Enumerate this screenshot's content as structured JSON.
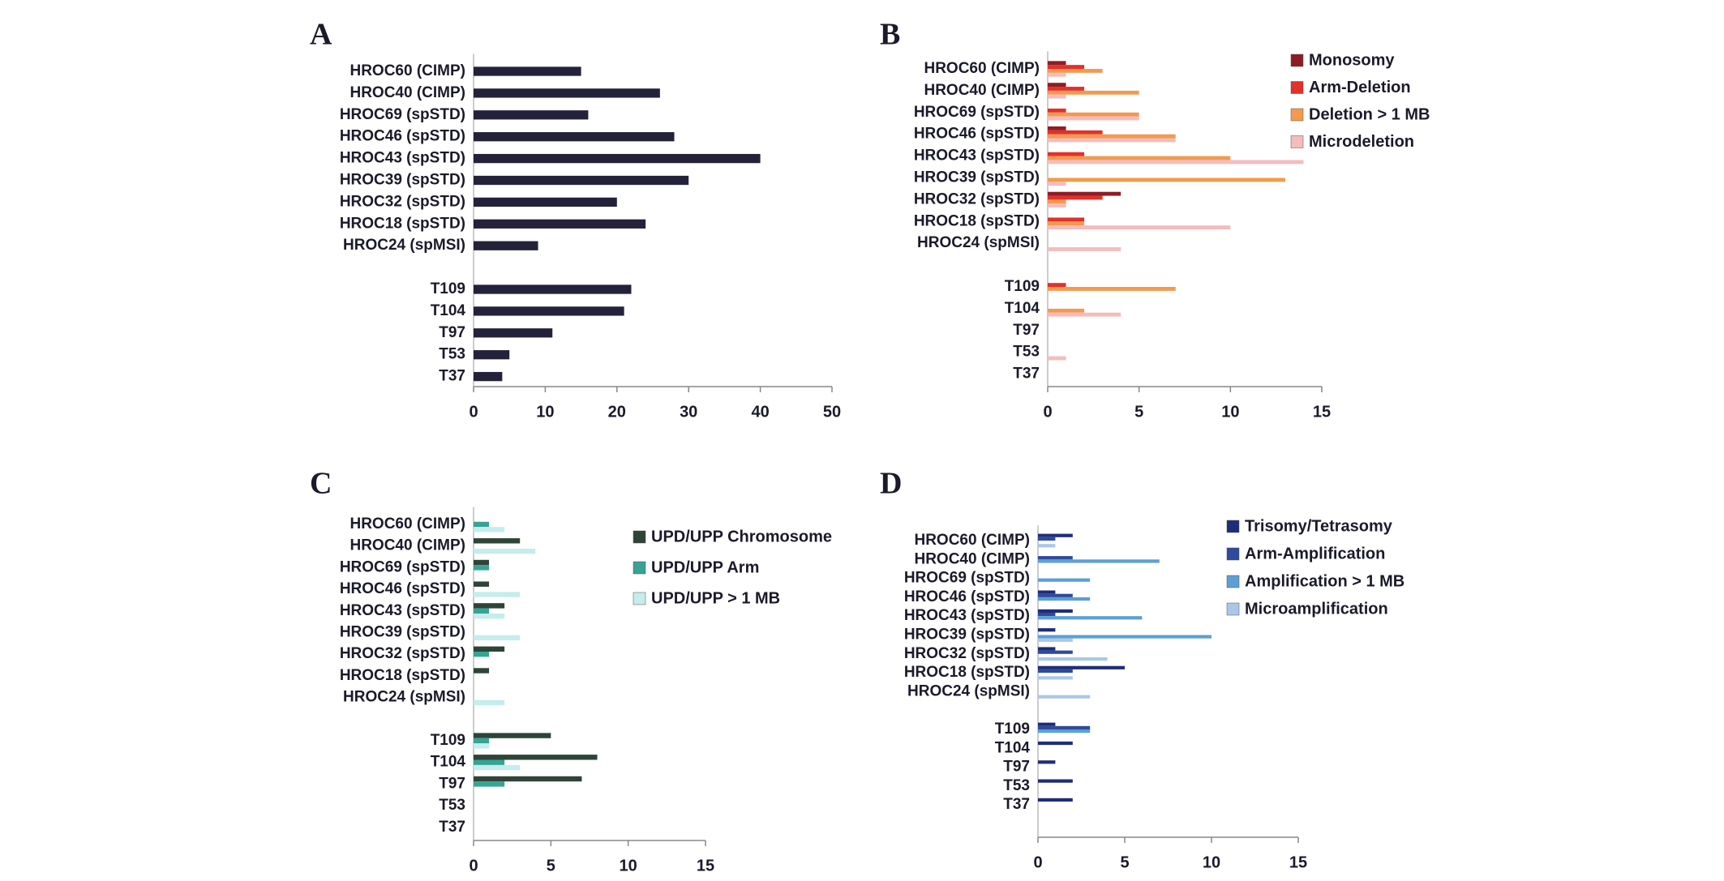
{
  "chart_data": [
    {
      "type": "bar",
      "title": "A",
      "categories": [
        "HROC60 (CIMP)",
        "HROC40 (CIMP)",
        "HROC69 (spSTD)",
        "HROC46 (spSTD)",
        "HROC43 (spSTD)",
        "HROC39 (spSTD)",
        "HROC32 (spSTD)",
        "HROC18 (spSTD)",
        "HROC24 (spMSI)",
        null,
        "T109",
        "T104",
        "T97",
        "T53",
        "T37"
      ],
      "values": [
        15,
        26,
        16,
        28,
        40,
        30,
        20,
        24,
        9,
        null,
        22,
        21,
        11,
        5,
        4
      ],
      "color": "#23223a",
      "xlim": [
        0,
        50
      ],
      "xticks": [
        0,
        10,
        20,
        30,
        40,
        50
      ]
    },
    {
      "type": "bar",
      "title": "B",
      "categories": [
        "HROC60 (CIMP)",
        "HROC40 (CIMP)",
        "HROC69 (spSTD)",
        "HROC46 (spSTD)",
        "HROC43 (spSTD)",
        "HROC39 (spSTD)",
        "HROC32 (spSTD)",
        "HROC18 (spSTD)",
        "HROC24 (spMSI)",
        null,
        "T109",
        "T104",
        "T97",
        "T53",
        "T37"
      ],
      "series": [
        {
          "name": "Monosomy",
          "color": "#8e1c24",
          "values": [
            1,
            1,
            0,
            1,
            0,
            0,
            4,
            0,
            0,
            null,
            0,
            0,
            0,
            0,
            0
          ]
        },
        {
          "name": "Arm-Deletion",
          "color": "#e2302a",
          "values": [
            2,
            2,
            1,
            3,
            2,
            0,
            3,
            2,
            0,
            null,
            1,
            0,
            0,
            0,
            0
          ]
        },
        {
          "name": "Deletion > 1 MB",
          "color": "#f29a4e",
          "values": [
            3,
            5,
            5,
            7,
            10,
            13,
            1,
            2,
            0,
            null,
            7,
            2,
            0,
            0,
            0
          ]
        },
        {
          "name": "Microdeletion",
          "color": "#f5bcbc",
          "values": [
            1,
            1,
            5,
            7,
            14,
            1,
            1,
            10,
            4,
            null,
            0,
            4,
            0,
            1,
            0
          ]
        }
      ],
      "xlim": [
        0,
        15
      ],
      "xticks": [
        0,
        5,
        10,
        15
      ]
    },
    {
      "type": "bar",
      "title": "C",
      "categories": [
        "HROC60 (CIMP)",
        "HROC40 (CIMP)",
        "HROC69 (spSTD)",
        "HROC46 (spSTD)",
        "HROC43 (spSTD)",
        "HROC39 (spSTD)",
        "HROC32 (spSTD)",
        "HROC18 (spSTD)",
        "HROC24 (spMSI)",
        null,
        "T109",
        "T104",
        "T97",
        "T53",
        "T37"
      ],
      "series": [
        {
          "name": "UPD/UPP Chromosome",
          "color": "#2e4438",
          "values": [
            0,
            3,
            1,
            1,
            2,
            0,
            2,
            1,
            0,
            null,
            5,
            8,
            7,
            0,
            0
          ]
        },
        {
          "name": "UPD/UPP Arm",
          "color": "#36a394",
          "values": [
            1,
            0,
            1,
            0,
            1,
            0,
            1,
            0,
            0,
            null,
            1,
            2,
            2,
            0,
            0
          ]
        },
        {
          "name": "UPD/UPP > 1 MB",
          "color": "#c6ecec",
          "values": [
            2,
            4,
            0,
            3,
            2,
            3,
            0,
            0,
            2,
            null,
            1,
            3,
            0,
            0,
            0
          ]
        }
      ],
      "xlim": [
        0,
        15
      ],
      "xticks": [
        0,
        5,
        10,
        15
      ]
    },
    {
      "type": "bar",
      "title": "D",
      "categories": [
        "HROC60 (CIMP)",
        "HROC40 (CIMP)",
        "HROC69 (spSTD)",
        "HROC46 (spSTD)",
        "HROC43 (spSTD)",
        "HROC39 (spSTD)",
        "HROC32 (spSTD)",
        "HROC18 (spSTD)",
        "HROC24 (spMSI)",
        null,
        "T109",
        "T104",
        "T97",
        "T53",
        "T37"
      ],
      "series": [
        {
          "name": "Trisomy/Tetrasomy",
          "color": "#1f2d78",
          "values": [
            2,
            0,
            0,
            1,
            2,
            1,
            1,
            5,
            0,
            null,
            1,
            2,
            1,
            2,
            2
          ]
        },
        {
          "name": "Arm-Amplification",
          "color": "#2f4a9c",
          "values": [
            1,
            2,
            0,
            2,
            1,
            0,
            2,
            2,
            0,
            null,
            3,
            0,
            0,
            0,
            0
          ]
        },
        {
          "name": "Amplification > 1 MB",
          "color": "#5b9fd6",
          "values": [
            0,
            7,
            3,
            3,
            6,
            10,
            0,
            0,
            0,
            null,
            3,
            0,
            0,
            0,
            0
          ]
        },
        {
          "name": "Microamplification",
          "color": "#a9c8e8",
          "values": [
            1,
            0,
            0,
            0,
            0,
            2,
            4,
            2,
            3,
            null,
            0,
            0,
            0,
            0,
            0
          ]
        }
      ],
      "xlim": [
        0,
        15
      ],
      "xticks": [
        0,
        5,
        10,
        15
      ]
    }
  ]
}
